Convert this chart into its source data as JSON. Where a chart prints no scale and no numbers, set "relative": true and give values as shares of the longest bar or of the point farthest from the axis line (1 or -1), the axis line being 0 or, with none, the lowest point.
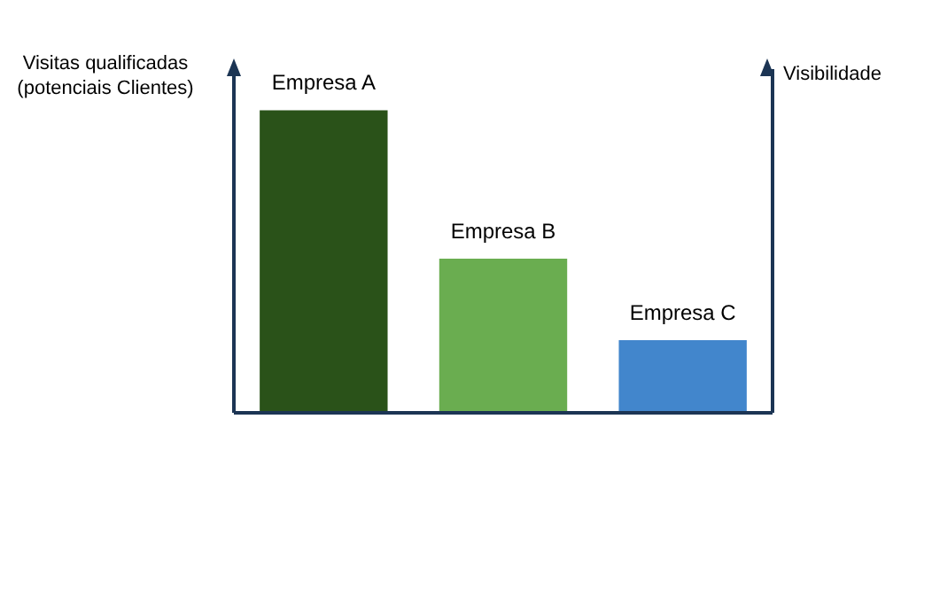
{
  "chart_data": {
    "type": "bar",
    "relative": true,
    "categories": [
      "Empresa A",
      "Empresa B",
      "Empresa C"
    ],
    "values": [
      1,
      0.51,
      0.24
    ],
    "colors": [
      "#2a5219",
      "#6aad50",
      "#4286cc"
    ],
    "ylabel": "Visitas qualificadas (potenciais Clientes)",
    "y2label": "Visibilidade"
  }
}
